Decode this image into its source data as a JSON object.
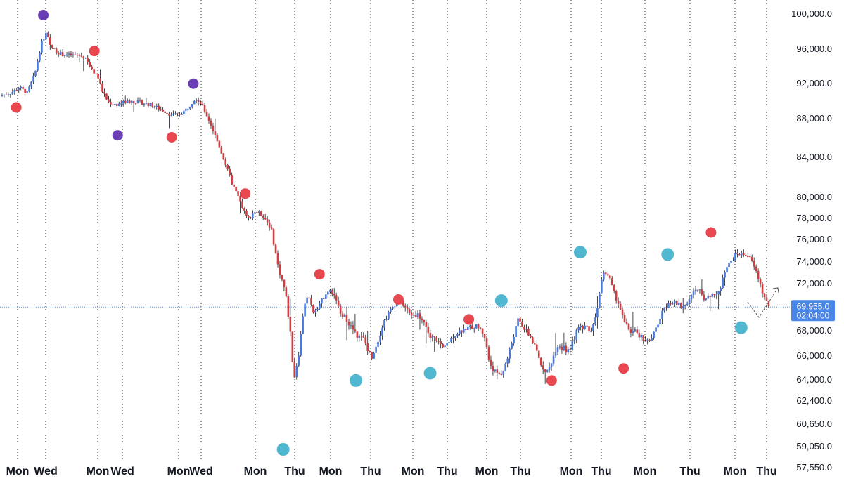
{
  "chart_data": {
    "type": "candlestick",
    "title": "",
    "y_tick_labels": [
      "100,000.0",
      "96,000.0",
      "92,000.0",
      "88,000.0",
      "84,000.0",
      "80,000.0",
      "78,000.0",
      "76,000.0",
      "74,000.0",
      "72,000.0",
      "68,000.0",
      "66,000.0",
      "64,000.0",
      "62,400.0",
      "60,650.0",
      "59,050.0",
      "57,550.0"
    ],
    "x_tick_labels": [
      "Mon",
      "Wed",
      "Mon",
      "Wed",
      "Mon",
      "Wed",
      "Mon",
      "Thu",
      "Mon",
      "Thu",
      "Mon",
      "Thu",
      "Mon",
      "Thu",
      "Mon",
      "Thu",
      "Mon",
      "Thu",
      "Mon",
      "Thu"
    ],
    "current_price": {
      "value": 69955.0,
      "label": "69,955.0",
      "countdown": "02:04:00"
    },
    "path": [
      [
        0.0,
        90500
      ],
      [
        1.5,
        90900
      ],
      [
        2.5,
        91500
      ],
      [
        3.5,
        90800
      ],
      [
        4.5,
        93000
      ],
      [
        5.3,
        96500
      ],
      [
        6.0,
        97800
      ],
      [
        6.5,
        96200
      ],
      [
        7.2,
        95700
      ],
      [
        8.0,
        95300
      ],
      [
        9.0,
        95200
      ],
      [
        10.0,
        95200
      ],
      [
        11.2,
        94900
      ],
      [
        11.8,
        93500
      ],
      [
        12.6,
        92800
      ],
      [
        13.3,
        90900
      ],
      [
        14.0,
        89800
      ],
      [
        15.0,
        89500
      ],
      [
        16.0,
        89800
      ],
      [
        17.0,
        89900
      ],
      [
        18.0,
        89800
      ],
      [
        19.5,
        89500
      ],
      [
        21.0,
        88900
      ],
      [
        22.0,
        88400
      ],
      [
        23.0,
        88300
      ],
      [
        24.0,
        88900
      ],
      [
        25.3,
        90300
      ],
      [
        26.0,
        89600
      ],
      [
        27.0,
        87800
      ],
      [
        28.0,
        85800
      ],
      [
        29.0,
        83600
      ],
      [
        30.0,
        81300
      ],
      [
        31.0,
        79600
      ],
      [
        32.0,
        77800
      ],
      [
        32.9,
        78600
      ],
      [
        34.0,
        78200
      ],
      [
        35.0,
        77100
      ],
      [
        36.0,
        73300
      ],
      [
        36.9,
        71200
      ],
      [
        37.5,
        68000
      ],
      [
        38.0,
        64000
      ],
      [
        38.7,
        66500
      ],
      [
        39.3,
        70200
      ],
      [
        39.8,
        70800
      ],
      [
        40.5,
        69600
      ],
      [
        41.5,
        70400
      ],
      [
        42.2,
        71300
      ],
      [
        43.0,
        71200
      ],
      [
        43.8,
        69800
      ],
      [
        45.0,
        68700
      ],
      [
        46.0,
        67600
      ],
      [
        47.0,
        67300
      ],
      [
        48.0,
        65800
      ],
      [
        48.8,
        67100
      ],
      [
        49.6,
        68700
      ],
      [
        50.5,
        69700
      ],
      [
        51.2,
        70400
      ],
      [
        52.0,
        70300
      ],
      [
        53.0,
        69300
      ],
      [
        54.0,
        69300
      ],
      [
        54.8,
        68700
      ],
      [
        55.6,
        67400
      ],
      [
        56.5,
        67300
      ],
      [
        57.2,
        66400
      ],
      [
        58.0,
        67100
      ],
      [
        59.0,
        67800
      ],
      [
        60.0,
        68100
      ],
      [
        61.0,
        68300
      ],
      [
        61.8,
        68300
      ],
      [
        62.6,
        67600
      ],
      [
        63.3,
        65300
      ],
      [
        64.0,
        64600
      ],
      [
        64.8,
        64400
      ],
      [
        65.5,
        65500
      ],
      [
        66.2,
        67100
      ],
      [
        67.0,
        68900
      ],
      [
        67.8,
        68100
      ],
      [
        68.6,
        67400
      ],
      [
        69.3,
        66400
      ],
      [
        70.0,
        65100
      ],
      [
        70.8,
        64600
      ],
      [
        71.4,
        65700
      ],
      [
        72.0,
        66800
      ],
      [
        72.8,
        66600
      ],
      [
        73.6,
        66200
      ],
      [
        74.4,
        67700
      ],
      [
        75.0,
        68300
      ],
      [
        75.7,
        68300
      ],
      [
        76.5,
        67900
      ],
      [
        77.3,
        70300
      ],
      [
        78.0,
        73100
      ],
      [
        78.7,
        72600
      ],
      [
        79.3,
        71200
      ],
      [
        80.0,
        70200
      ],
      [
        80.7,
        68600
      ],
      [
        81.5,
        67900
      ],
      [
        82.3,
        67800
      ],
      [
        83.0,
        67400
      ],
      [
        83.7,
        67100
      ],
      [
        84.3,
        67300
      ],
      [
        85.0,
        68500
      ],
      [
        85.7,
        69600
      ],
      [
        86.4,
        70400
      ],
      [
        87.1,
        70300
      ],
      [
        87.8,
        70100
      ],
      [
        88.4,
        69900
      ],
      [
        89.0,
        70600
      ],
      [
        89.7,
        71300
      ],
      [
        90.4,
        71300
      ],
      [
        91.1,
        70700
      ],
      [
        91.8,
        70700
      ],
      [
        92.5,
        71100
      ],
      [
        93.1,
        71500
      ],
      [
        93.8,
        73200
      ],
      [
        94.5,
        74000
      ],
      [
        95.2,
        74700
      ],
      [
        95.9,
        74600
      ],
      [
        96.6,
        74600
      ],
      [
        97.3,
        73800
      ],
      [
        98.0,
        72500
      ],
      [
        98.7,
        70900
      ],
      [
        99.3,
        70100
      ],
      [
        99.6,
        69955
      ]
    ],
    "markers": [
      {
        "t": 2.1,
        "v": 89200,
        "color": "#e8474f"
      },
      {
        "t": 5.6,
        "v": 99800,
        "color": "#6a3fb5"
      },
      {
        "t": 12.2,
        "v": 95700,
        "color": "#e8474f"
      },
      {
        "t": 15.2,
        "v": 86200,
        "color": "#6a3fb5"
      },
      {
        "t": 22.2,
        "v": 86000,
        "color": "#e8474f"
      },
      {
        "t": 25.0,
        "v": 91900,
        "color": "#6a3fb5"
      },
      {
        "t": 31.7,
        "v": 80300,
        "color": "#e8474f"
      },
      {
        "t": 36.6,
        "v": 58800,
        "color": "#4fb8d0"
      },
      {
        "t": 41.3,
        "v": 72800,
        "color": "#e8474f"
      },
      {
        "t": 46.0,
        "v": 63900,
        "color": "#4fb8d0"
      },
      {
        "t": 51.5,
        "v": 70600,
        "color": "#e8474f"
      },
      {
        "t": 55.6,
        "v": 64500,
        "color": "#4fb8d0"
      },
      {
        "t": 60.6,
        "v": 68900,
        "color": "#e8474f"
      },
      {
        "t": 64.8,
        "v": 70500,
        "color": "#4fb8d0"
      },
      {
        "t": 71.3,
        "v": 63900,
        "color": "#e8474f"
      },
      {
        "t": 75.0,
        "v": 74800,
        "color": "#4fb8d0"
      },
      {
        "t": 80.6,
        "v": 64900,
        "color": "#e8474f"
      },
      {
        "t": 86.3,
        "v": 74600,
        "color": "#4fb8d0"
      },
      {
        "t": 91.9,
        "v": 76600,
        "color": "#e8474f"
      },
      {
        "t": 95.8,
        "v": 68200,
        "color": "#4fb8d0"
      }
    ],
    "colors": {
      "up": "#4a78d8",
      "down": "#d13c3f",
      "wick": "#131722",
      "vline": "#3a3a3a",
      "price_line": "#5b8fe8",
      "price_label_bg": "#4a86e8"
    }
  }
}
